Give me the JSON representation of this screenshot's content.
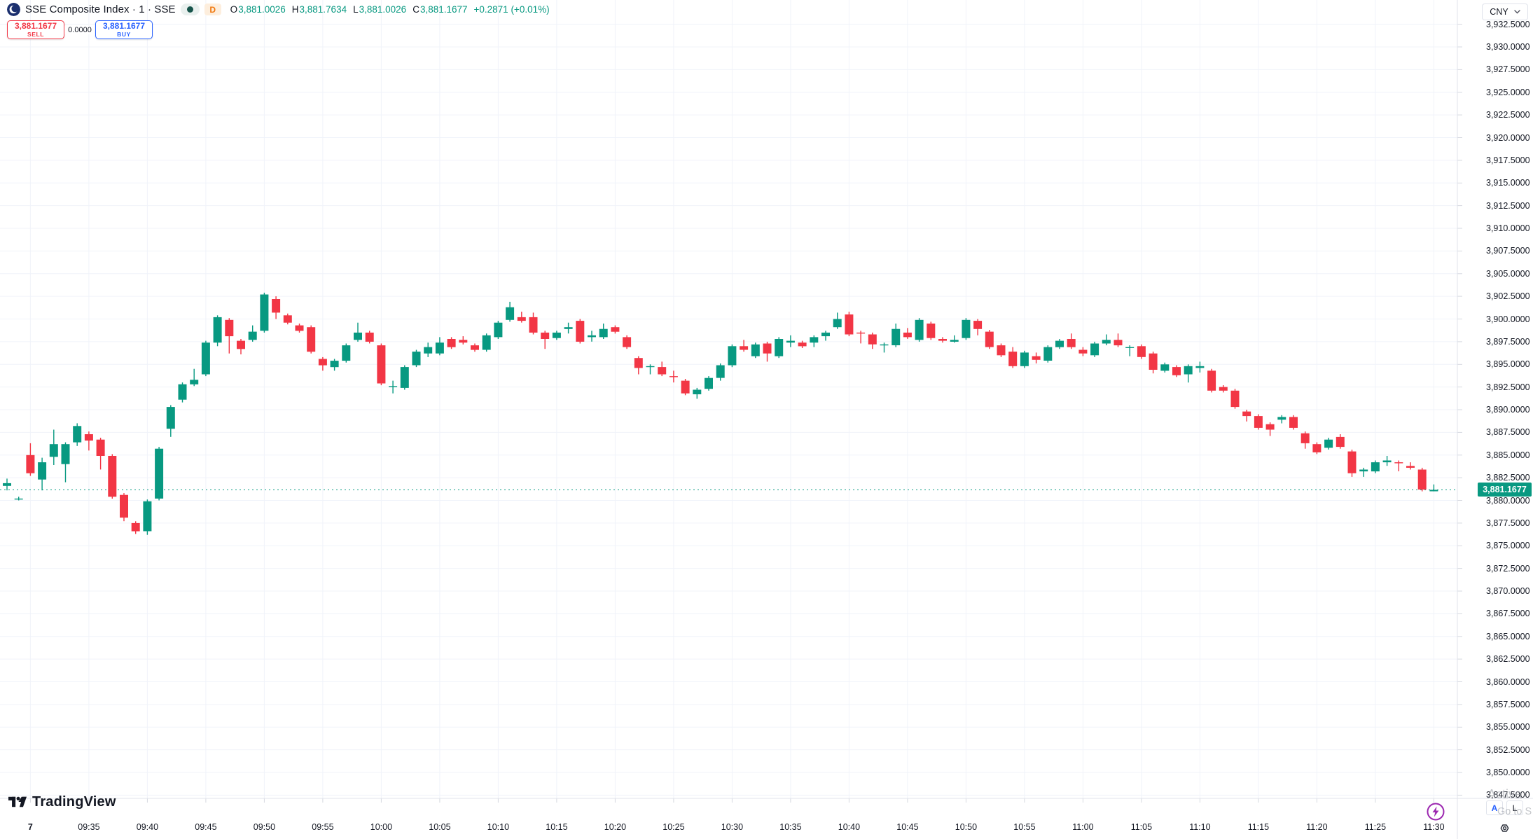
{
  "header": {
    "symbol_title": "SSE Composite Index · 1 · SSE",
    "interval_badge": "D",
    "ohlc": {
      "o_label": "O",
      "o": "3,881.0026",
      "h_label": "H",
      "h": "3,881.7634",
      "l_label": "L",
      "l": "3,881.0026",
      "c_label": "C",
      "c": "3,881.1677",
      "change": "+0.2871 (+0.01%)"
    }
  },
  "trade_panel": {
    "sell_price": "3,881.1677",
    "sell_label": "SELL",
    "spread": "0.0000",
    "buy_price": "3,881.1677",
    "buy_label": "BUY"
  },
  "price_axis": {
    "currency": "CNY"
  },
  "footer": {
    "logo_text": "TradingView"
  },
  "corner": {
    "auto_label": "A",
    "log_label": "L"
  },
  "watermark": {
    "line1": "Activa",
    "line2": "Go to S"
  },
  "colors": {
    "up": "#089981",
    "down": "#f23645",
    "buy_accent": "#2962ff",
    "sell_accent": "#f23645",
    "badge_orange": "#f0770b",
    "lightning_purple": "#9c27b0",
    "text": "#131722"
  },
  "chart_data": {
    "type": "candlestick",
    "title": "SSE Composite Index, 1 minute, SSE",
    "ylabel": "Price (CNY)",
    "ylim": [
      3847.2,
      3935.2
    ],
    "grid": true,
    "up_color": "#089981",
    "down_color": "#f23645",
    "grid_color": "#f0f3fa",
    "axis_line_color": "#e0e3eb",
    "tick_color": "#d6d9e0",
    "current_price": 3881.1677,
    "current_price_label": "3,881.1677",
    "first_session_candle_index": 2,
    "x_tick_labels": [
      "7",
      "09:35",
      "09:40",
      "09:45",
      "09:50",
      "09:55",
      "10:00",
      "10:05",
      "10:10",
      "10:15",
      "10:20",
      "10:25",
      "10:30",
      "10:35",
      "10:40",
      "10:45",
      "10:50",
      "10:55",
      "11:00",
      "11:05",
      "11:10",
      "11:15",
      "11:20",
      "11:25",
      "11:30"
    ],
    "y_tick_labels": [
      "3,932.5000",
      "3,930.0000",
      "3,927.5000",
      "3,925.0000",
      "3,922.5000",
      "3,920.0000",
      "3,917.5000",
      "3,915.0000",
      "3,912.5000",
      "3,910.0000",
      "3,907.5000",
      "3,905.0000",
      "3,902.5000",
      "3,900.0000",
      "3,897.5000",
      "3,895.0000",
      "3,892.5000",
      "3,890.0000",
      "3,887.5000",
      "3,885.0000",
      "3,882.5000",
      "3,880.0000",
      "3,877.5000",
      "3,875.0000",
      "3,872.5000",
      "3,870.0000",
      "3,867.5000",
      "3,865.0000",
      "3,862.5000",
      "3,860.0000",
      "3,857.5000",
      "3,855.0000",
      "3,852.5000",
      "3,850.0000",
      "3,847.5000"
    ],
    "candle_columns": [
      "time",
      "open",
      "high",
      "low",
      "close"
    ],
    "candles": [
      [
        "",
        3881.6,
        3882.4,
        3881.1,
        3881.9
      ],
      [
        "",
        3880.2,
        3880.4,
        3880.0,
        3880.2
      ],
      [
        "09:30",
        3885.0,
        3886.3,
        3882.7,
        3883.0
      ],
      [
        "09:31",
        3882.3,
        3884.7,
        3881.1,
        3884.2
      ],
      [
        "09:32",
        3884.8,
        3887.8,
        3883.9,
        3886.2
      ],
      [
        "09:33",
        3884.0,
        3886.4,
        3882.0,
        3886.2
      ],
      [
        "09:34",
        3886.4,
        3888.5,
        3886.0,
        3888.2
      ],
      [
        "09:35",
        3887.3,
        3887.6,
        3885.5,
        3886.6
      ],
      [
        "09:36",
        3886.7,
        3886.9,
        3883.4,
        3884.9
      ],
      [
        "09:37",
        3884.9,
        3885.1,
        3880.2,
        3880.4
      ],
      [
        "09:38",
        3880.6,
        3880.8,
        3877.7,
        3878.1
      ],
      [
        "09:39",
        3877.5,
        3877.7,
        3876.3,
        3876.6
      ],
      [
        "09:40",
        3876.6,
        3880.1,
        3876.2,
        3879.9
      ],
      [
        "09:41",
        3880.2,
        3885.9,
        3880.0,
        3885.7
      ],
      [
        "09:42",
        3887.9,
        3890.5,
        3887.0,
        3890.3
      ],
      [
        "09:43",
        3891.1,
        3893.0,
        3890.8,
        3892.8
      ],
      [
        "09:44",
        3892.8,
        3894.5,
        3892.6,
        3893.3
      ],
      [
        "09:45",
        3893.9,
        3897.6,
        3893.7,
        3897.4
      ],
      [
        "09:46",
        3897.4,
        3900.4,
        3897.0,
        3900.2
      ],
      [
        "09:47",
        3899.9,
        3900.1,
        3896.2,
        3898.1
      ],
      [
        "09:48",
        3897.6,
        3897.8,
        3896.1,
        3896.7
      ],
      [
        "09:49",
        3897.7,
        3899.3,
        3897.5,
        3898.6
      ],
      [
        "09:50",
        3898.7,
        3902.9,
        3898.5,
        3902.7
      ],
      [
        "09:51",
        3902.2,
        3902.5,
        3900.0,
        3900.7
      ],
      [
        "09:52",
        3900.4,
        3900.6,
        3899.4,
        3899.6
      ],
      [
        "09:53",
        3899.3,
        3899.5,
        3898.5,
        3898.7
      ],
      [
        "09:54",
        3899.1,
        3899.3,
        3896.2,
        3896.4
      ],
      [
        "09:55",
        3895.6,
        3895.8,
        3894.3,
        3894.9
      ],
      [
        "09:56",
        3894.7,
        3895.6,
        3894.3,
        3895.4
      ],
      [
        "09:57",
        3895.4,
        3897.3,
        3895.2,
        3897.1
      ],
      [
        "09:58",
        3897.7,
        3899.6,
        3897.5,
        3898.5
      ],
      [
        "09:59",
        3898.5,
        3898.7,
        3897.3,
        3897.5
      ],
      [
        "10:00",
        3897.1,
        3897.3,
        3892.7,
        3892.9
      ],
      [
        "10:01",
        3892.5,
        3893.2,
        3891.8,
        3892.6
      ],
      [
        "10:02",
        3892.4,
        3894.9,
        3892.2,
        3894.7
      ],
      [
        "10:03",
        3894.9,
        3896.6,
        3894.7,
        3896.4
      ],
      [
        "10:04",
        3896.2,
        3897.4,
        3895.8,
        3896.9
      ],
      [
        "10:05",
        3896.2,
        3898.0,
        3896.0,
        3897.4
      ],
      [
        "10:06",
        3897.8,
        3898.0,
        3896.7,
        3896.9
      ],
      [
        "10:07",
        3897.7,
        3898.1,
        3897.2,
        3897.4
      ],
      [
        "10:08",
        3897.1,
        3897.3,
        3896.4,
        3896.6
      ],
      [
        "10:09",
        3896.6,
        3898.4,
        3896.4,
        3898.2
      ],
      [
        "10:10",
        3898.0,
        3899.8,
        3897.8,
        3899.6
      ],
      [
        "10:11",
        3899.9,
        3901.9,
        3899.7,
        3901.3
      ],
      [
        "10:12",
        3900.2,
        3900.8,
        3899.6,
        3899.8
      ],
      [
        "10:13",
        3900.2,
        3900.7,
        3898.3,
        3898.5
      ],
      [
        "10:14",
        3898.5,
        3898.7,
        3896.7,
        3897.8
      ],
      [
        "10:15",
        3897.9,
        3898.7,
        3897.7,
        3898.5
      ],
      [
        "10:16",
        3898.9,
        3899.6,
        3898.4,
        3899.1
      ],
      [
        "10:17",
        3899.8,
        3900.0,
        3897.3,
        3897.5
      ],
      [
        "10:18",
        3898.0,
        3898.7,
        3897.5,
        3898.2
      ],
      [
        "10:19",
        3898.0,
        3899.5,
        3897.8,
        3898.9
      ],
      [
        "10:20",
        3899.1,
        3899.3,
        3898.4,
        3898.6
      ],
      [
        "10:21",
        3898.0,
        3898.2,
        3896.7,
        3896.9
      ],
      [
        "10:22",
        3895.7,
        3895.9,
        3893.9,
        3894.6
      ],
      [
        "10:23",
        3894.7,
        3895.0,
        3893.9,
        3894.8
      ],
      [
        "10:24",
        3894.7,
        3895.3,
        3893.7,
        3893.9
      ],
      [
        "10:25",
        3893.7,
        3894.3,
        3893.0,
        3893.6
      ],
      [
        "10:26",
        3893.2,
        3893.4,
        3891.6,
        3891.8
      ],
      [
        "10:27",
        3891.7,
        3892.4,
        3891.2,
        3892.2
      ],
      [
        "10:28",
        3892.3,
        3893.7,
        3892.1,
        3893.5
      ],
      [
        "10:29",
        3893.5,
        3895.1,
        3893.2,
        3894.9
      ],
      [
        "10:30",
        3894.9,
        3897.2,
        3894.7,
        3897.0
      ],
      [
        "10:31",
        3897.0,
        3897.7,
        3896.4,
        3896.6
      ],
      [
        "10:32",
        3895.9,
        3897.4,
        3895.7,
        3897.2
      ],
      [
        "10:33",
        3897.3,
        3897.5,
        3895.3,
        3896.2
      ],
      [
        "10:34",
        3895.9,
        3898.0,
        3895.7,
        3897.8
      ],
      [
        "10:35",
        3897.4,
        3898.2,
        3896.9,
        3897.6
      ],
      [
        "10:36",
        3897.4,
        3897.6,
        3896.8,
        3897.0
      ],
      [
        "10:37",
        3897.4,
        3898.2,
        3896.9,
        3898.0
      ],
      [
        "10:38",
        3898.1,
        3898.7,
        3897.6,
        3898.5
      ],
      [
        "10:39",
        3899.1,
        3900.7,
        3898.9,
        3900.0
      ],
      [
        "10:40",
        3900.5,
        3900.8,
        3898.1,
        3898.3
      ],
      [
        "10:41",
        3898.5,
        3898.7,
        3897.3,
        3898.4
      ],
      [
        "10:42",
        3898.3,
        3898.5,
        3896.7,
        3897.2
      ],
      [
        "10:43",
        3897.1,
        3897.4,
        3896.3,
        3897.2
      ],
      [
        "10:44",
        3897.1,
        3899.5,
        3896.9,
        3898.9
      ],
      [
        "10:45",
        3898.5,
        3899.0,
        3897.8,
        3898.0
      ],
      [
        "10:46",
        3897.7,
        3900.1,
        3897.5,
        3899.9
      ],
      [
        "10:47",
        3899.5,
        3899.7,
        3897.7,
        3897.9
      ],
      [
        "10:48",
        3897.8,
        3898.0,
        3897.4,
        3897.6
      ],
      [
        "10:49",
        3897.5,
        3898.2,
        3897.4,
        3897.7
      ],
      [
        "10:50",
        3897.9,
        3900.1,
        3897.7,
        3899.9
      ],
      [
        "10:51",
        3899.8,
        3900.0,
        3898.2,
        3898.9
      ],
      [
        "10:52",
        3898.6,
        3898.8,
        3896.7,
        3896.9
      ],
      [
        "10:53",
        3897.1,
        3897.3,
        3895.8,
        3896.0
      ],
      [
        "10:54",
        3896.4,
        3896.9,
        3894.6,
        3894.8
      ],
      [
        "10:55",
        3894.8,
        3896.5,
        3894.6,
        3896.3
      ],
      [
        "10:56",
        3895.9,
        3896.3,
        3895.1,
        3895.5
      ],
      [
        "10:57",
        3895.4,
        3897.1,
        3895.2,
        3896.9
      ],
      [
        "10:58",
        3896.9,
        3897.8,
        3896.7,
        3897.6
      ],
      [
        "10:59",
        3897.8,
        3898.4,
        3896.7,
        3896.9
      ],
      [
        "11:00",
        3896.6,
        3896.9,
        3895.9,
        3896.2
      ],
      [
        "11:01",
        3896.0,
        3897.5,
        3895.8,
        3897.3
      ],
      [
        "11:02",
        3897.3,
        3898.3,
        3897.1,
        3897.7
      ],
      [
        "11:03",
        3897.7,
        3898.4,
        3896.9,
        3897.1
      ],
      [
        "11:04",
        3896.8,
        3897.1,
        3895.9,
        3896.9
      ],
      [
        "11:05",
        3897.0,
        3897.2,
        3895.6,
        3895.8
      ],
      [
        "11:06",
        3896.2,
        3896.4,
        3894.0,
        3894.4
      ],
      [
        "11:07",
        3894.3,
        3895.2,
        3894.1,
        3895.0
      ],
      [
        "11:08",
        3894.7,
        3894.9,
        3893.6,
        3893.8
      ],
      [
        "11:09",
        3893.9,
        3895.0,
        3893.0,
        3894.8
      ],
      [
        "11:10",
        3894.6,
        3895.3,
        3894.1,
        3894.8
      ],
      [
        "11:11",
        3894.3,
        3894.5,
        3891.9,
        3892.1
      ],
      [
        "11:12",
        3892.5,
        3892.7,
        3891.9,
        3892.1
      ],
      [
        "11:13",
        3892.1,
        3892.3,
        3890.1,
        3890.3
      ],
      [
        "11:14",
        3889.8,
        3890.0,
        3888.7,
        3889.3
      ],
      [
        "11:15",
        3889.3,
        3889.5,
        3887.8,
        3888.0
      ],
      [
        "11:16",
        3888.4,
        3888.6,
        3887.1,
        3887.8
      ],
      [
        "11:17",
        3888.9,
        3889.4,
        3888.5,
        3889.2
      ],
      [
        "11:18",
        3889.2,
        3889.4,
        3887.8,
        3888.0
      ],
      [
        "11:19",
        3887.4,
        3887.6,
        3885.7,
        3886.3
      ],
      [
        "11:20",
        3886.2,
        3886.4,
        3885.1,
        3885.3
      ],
      [
        "11:21",
        3885.8,
        3886.9,
        3885.6,
        3886.7
      ],
      [
        "11:22",
        3887.0,
        3887.3,
        3885.7,
        3885.9
      ],
      [
        "11:23",
        3885.4,
        3885.6,
        3882.6,
        3883.0
      ],
      [
        "11:24",
        3883.2,
        3883.6,
        3882.6,
        3883.4
      ],
      [
        "11:25",
        3883.2,
        3884.4,
        3883.0,
        3884.2
      ],
      [
        "11:26",
        3884.2,
        3884.9,
        3883.8,
        3884.4
      ],
      [
        "11:27",
        3884.2,
        3884.4,
        3883.2,
        3884.1
      ],
      [
        "11:28",
        3883.8,
        3884.2,
        3883.4,
        3883.6
      ],
      [
        "11:29",
        3883.4,
        3883.6,
        3881.0,
        3881.2
      ],
      [
        "11:30",
        3881.0026,
        3881.7634,
        3881.0026,
        3881.1677
      ]
    ]
  }
}
